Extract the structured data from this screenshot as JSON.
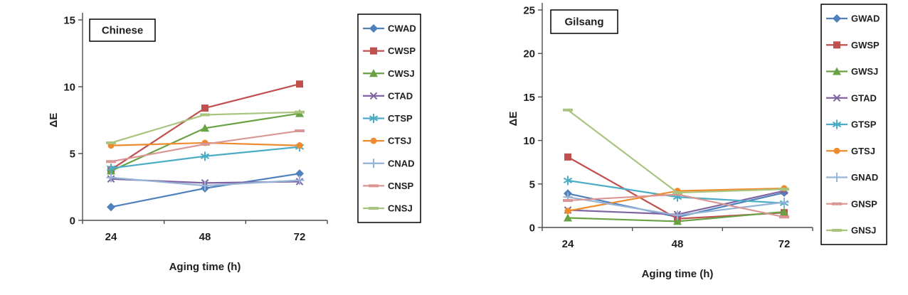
{
  "figure": {
    "description": "Two line charts showing color difference (ΔE) versus aging time for Chinese and Gilsang samples",
    "xlabel": "Aging time (h)",
    "ylabel": "ΔE"
  },
  "chart_data": [
    {
      "type": "line",
      "title": "Chinese",
      "xlabel": "Aging time (h)",
      "ylabel": "ΔE",
      "x": [
        "24",
        "48",
        "72"
      ],
      "ylim": [
        0,
        15
      ],
      "yticks": [
        0,
        5,
        10,
        15
      ],
      "grid": false,
      "legend_position": "right",
      "series": [
        {
          "name": "CWAD",
          "color": "#4F81BD",
          "marker": "diamond",
          "values": [
            1.0,
            2.4,
            3.5
          ]
        },
        {
          "name": "CWSP",
          "color": "#C0504D",
          "marker": "square",
          "values": [
            3.8,
            8.4,
            10.2
          ]
        },
        {
          "name": "CWSJ",
          "color": "#68A244",
          "marker": "triangle",
          "values": [
            3.7,
            6.9,
            8.0
          ]
        },
        {
          "name": "CTAD",
          "color": "#8064A2",
          "marker": "x",
          "values": [
            3.1,
            2.8,
            2.9
          ]
        },
        {
          "name": "CTSP",
          "color": "#4BACC6",
          "marker": "asterisk",
          "values": [
            3.9,
            4.8,
            5.5
          ]
        },
        {
          "name": "CTSJ",
          "color": "#ED8B2F",
          "marker": "circle",
          "values": [
            5.6,
            5.8,
            5.6
          ]
        },
        {
          "name": "CNAD",
          "color": "#95B3D7",
          "marker": "plus",
          "values": [
            3.2,
            2.6,
            3.0
          ]
        },
        {
          "name": "CNSP",
          "color": "#D99694",
          "marker": "dash",
          "values": [
            4.4,
            5.7,
            6.7
          ]
        },
        {
          "name": "CNSJ",
          "color": "#A9C47F",
          "marker": "dash",
          "values": [
            5.8,
            7.9,
            8.1
          ]
        }
      ]
    },
    {
      "type": "line",
      "title": "Gilsang",
      "xlabel": "Aging time (h)",
      "ylabel": "ΔE",
      "x": [
        "24",
        "48",
        "72"
      ],
      "ylim": [
        0,
        25
      ],
      "yticks": [
        0,
        5,
        10,
        15,
        20,
        25
      ],
      "grid": false,
      "legend_position": "right",
      "series": [
        {
          "name": "GWAD",
          "color": "#4F81BD",
          "marker": "diamond",
          "values": [
            3.9,
            1.2,
            4.0
          ]
        },
        {
          "name": "GWSP",
          "color": "#C0504D",
          "marker": "square",
          "values": [
            8.1,
            1.0,
            1.7
          ]
        },
        {
          "name": "GWSJ",
          "color": "#68A244",
          "marker": "triangle",
          "values": [
            1.1,
            0.7,
            1.8
          ]
        },
        {
          "name": "GTAD",
          "color": "#8064A2",
          "marker": "x",
          "values": [
            2.0,
            1.5,
            4.2
          ]
        },
        {
          "name": "GTSP",
          "color": "#4BACC6",
          "marker": "asterisk",
          "values": [
            5.4,
            3.5,
            2.8
          ]
        },
        {
          "name": "GTSJ",
          "color": "#ED8B2F",
          "marker": "circle",
          "values": [
            1.9,
            4.2,
            4.5
          ]
        },
        {
          "name": "GNAD",
          "color": "#95B3D7",
          "marker": "plus",
          "values": [
            3.5,
            1.4,
            2.9
          ]
        },
        {
          "name": "GNSP",
          "color": "#D99694",
          "marker": "dash",
          "values": [
            3.1,
            3.8,
            1.2
          ]
        },
        {
          "name": "GNSJ",
          "color": "#A9C47F",
          "marker": "dash",
          "values": [
            13.5,
            4.0,
            4.4
          ]
        }
      ]
    }
  ]
}
